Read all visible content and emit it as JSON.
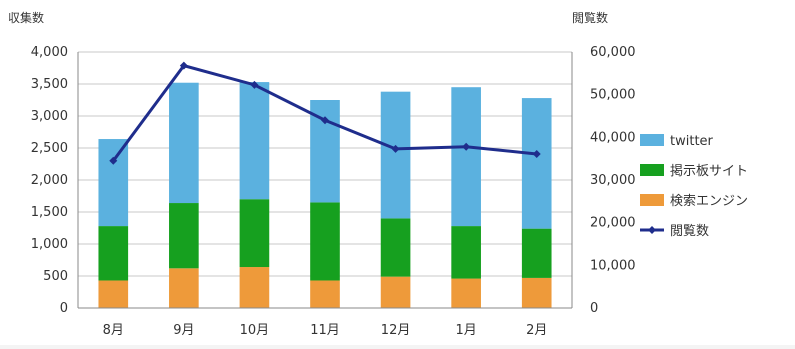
{
  "chart_data": {
    "type": "bar",
    "stacked": true,
    "title": "",
    "categories": [
      "8月",
      "9月",
      "10月",
      "11月",
      "12月",
      "1月",
      "2月"
    ],
    "y_left": {
      "label": "収集数",
      "range": [
        0,
        4000
      ],
      "ticks": [
        "0",
        "500",
        "1,000",
        "1,500",
        "2,000",
        "2,500",
        "3,000",
        "3,500",
        "4,000"
      ]
    },
    "y_right": {
      "label": "閲覧数",
      "range": [
        0,
        60000
      ],
      "ticks": [
        "0",
        "10,000",
        "20,000",
        "30,000",
        "40,000",
        "50,000",
        "60,000"
      ]
    },
    "grid": true,
    "legend_position": "right",
    "series": [
      {
        "name": "検索エンジン",
        "kind": "bar",
        "axis": "left",
        "color": "#ee9a3a",
        "values": [
          430,
          620,
          640,
          430,
          490,
          460,
          470
        ]
      },
      {
        "name": "掲示板サイト",
        "kind": "bar",
        "axis": "left",
        "color": "#16a01f",
        "values": [
          850,
          1020,
          1060,
          1220,
          910,
          820,
          770
        ]
      },
      {
        "name": "twitter",
        "kind": "bar",
        "axis": "left",
        "color": "#5bb1df",
        "values": [
          1360,
          1880,
          1830,
          1600,
          1980,
          2170,
          2040
        ]
      },
      {
        "name": "閲覧数",
        "kind": "line",
        "axis": "right",
        "color": "#1f2d8c",
        "values": [
          34500,
          56800,
          52300,
          44000,
          37300,
          37800,
          36100
        ]
      }
    ],
    "legend_order": [
      "twitter",
      "掲示板サイト",
      "検索エンジン",
      "閲覧数"
    ]
  }
}
